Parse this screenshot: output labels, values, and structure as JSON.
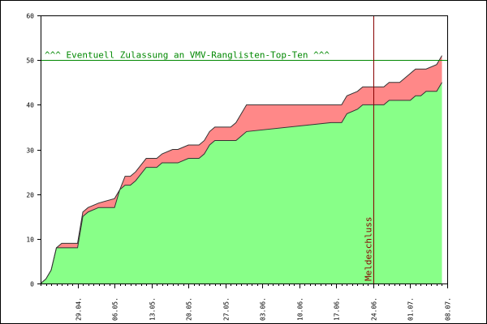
{
  "chart_data": {
    "type": "area",
    "title": "",
    "xlabel": "",
    "ylabel": "",
    "ylim": [
      0,
      60
    ],
    "yticks": [
      0,
      10,
      20,
      30,
      40,
      50,
      60
    ],
    "ytick_labels": [
      "0",
      "10",
      "20",
      "30",
      "40",
      "50",
      "60"
    ],
    "x_range": [
      "2012-04-22",
      "2012-07-08"
    ],
    "xtick_labels": [
      "29.04.",
      "06.05.",
      "13.05.",
      "20.05.",
      "27.05.",
      "03.06.",
      "10.06.",
      "17.06.",
      "24.06.",
      "01.07.",
      "08.07."
    ],
    "x": [
      "2012-04-22",
      "2012-04-23",
      "2012-04-24",
      "2012-04-25",
      "2012-04-26",
      "2012-04-29",
      "2012-04-30",
      "2012-05-01",
      "2012-05-03",
      "2012-05-06",
      "2012-05-07",
      "2012-05-08",
      "2012-05-09",
      "2012-05-10",
      "2012-05-12",
      "2012-05-13",
      "2012-05-14",
      "2012-05-15",
      "2012-05-17",
      "2012-05-18",
      "2012-05-20",
      "2012-05-21",
      "2012-05-22",
      "2012-05-23",
      "2012-05-24",
      "2012-05-25",
      "2012-05-26",
      "2012-05-27",
      "2012-05-28",
      "2012-05-29",
      "2012-05-30",
      "2012-05-31",
      "2012-06-16",
      "2012-06-17",
      "2012-06-18",
      "2012-06-19",
      "2012-06-21",
      "2012-06-22",
      "2012-06-24",
      "2012-06-26",
      "2012-06-27",
      "2012-06-28",
      "2012-06-29",
      "2012-07-01",
      "2012-07-02",
      "2012-07-03",
      "2012-07-04",
      "2012-07-06",
      "2012-07-07"
    ],
    "series": [
      {
        "color": "#88ff88",
        "values": [
          0,
          1,
          3,
          8,
          8,
          8,
          15,
          16,
          17,
          17,
          21,
          22,
          22,
          23,
          26,
          26,
          26,
          27,
          27,
          27,
          28,
          28,
          28,
          29,
          31,
          32,
          32,
          32,
          32,
          32,
          33,
          34,
          36,
          36,
          36,
          38,
          39,
          40,
          40,
          40,
          41,
          41,
          41,
          41,
          42,
          42,
          43,
          43,
          45
        ]
      },
      {
        "color": "#ff8888",
        "values": [
          0,
          1,
          3,
          8,
          9,
          9,
          16,
          17,
          18,
          19,
          21,
          24,
          24,
          25,
          28,
          28,
          28,
          29,
          30,
          30,
          31,
          31,
          31,
          32,
          34,
          35,
          35,
          35,
          35,
          36,
          38,
          40,
          40,
          40,
          40,
          42,
          43,
          44,
          44,
          44,
          45,
          45,
          45,
          47,
          48,
          48,
          48,
          49,
          51
        ]
      }
    ],
    "reference_line": {
      "value": 50,
      "label": "^^^ Eventuell Zulassung an VMV-Ranglisten-Top-Ten ^^^",
      "color": "#008800"
    },
    "marker_line": {
      "x": "2012-06-24",
      "label": "Meldeschluss",
      "color": "#880000"
    },
    "grid": false,
    "legend": "none"
  }
}
